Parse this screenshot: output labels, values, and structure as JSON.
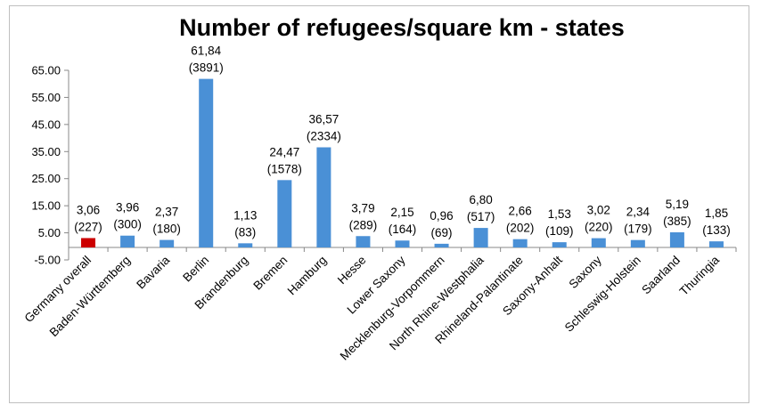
{
  "chart_data": {
    "type": "bar",
    "title": "Number of refugees/square km - states",
    "xlabel": "",
    "ylabel": "",
    "ylim": [
      -5,
      65
    ],
    "yticks": [
      "65.00",
      "55.00",
      "45.00",
      "35.00",
      "25.00",
      "15.00",
      "5.00",
      "-5.00"
    ],
    "ytick_values": [
      65,
      55,
      45,
      35,
      25,
      15,
      5,
      -5
    ],
    "grid": false,
    "categories": [
      "Germany overall",
      "Baden-Württemberg",
      "Bavaria",
      "Berlin",
      "Brandenburg",
      "Bremen",
      "Hamburg",
      "Hesse",
      "Lower Saxony",
      "Mecklenburg-Vorpommern",
      "North Rhine-Westphalia",
      "Rhineland-Palantinate",
      "Saxony-Anhalt",
      "Saxony",
      "Schleswig-Holstein",
      "Saarland",
      "Thuringia"
    ],
    "values": [
      3.06,
      3.96,
      2.37,
      61.84,
      1.13,
      24.47,
      36.57,
      3.79,
      2.15,
      0.96,
      6.8,
      2.66,
      1.53,
      3.02,
      2.34,
      5.19,
      1.85
    ],
    "value_labels": [
      "3,06",
      "3,96",
      "2,37",
      "61,84",
      "1,13",
      "24,47",
      "36,57",
      "3,79",
      "2,15",
      "0,96",
      "6,80",
      "2,66",
      "1,53",
      "3,02",
      "2,34",
      "5,19",
      "1,85"
    ],
    "count_labels": [
      "(227)",
      "(300)",
      "(180)",
      "(3891)",
      "(83)",
      "(1578)",
      "(2334)",
      "(289)",
      "(164)",
      "(69)",
      "(517)",
      "(202)",
      "(109)",
      "(220)",
      "(179)",
      "(385)",
      "(133)"
    ],
    "colors": [
      "#cc0000",
      "#4a90d6",
      "#4a90d6",
      "#4a90d6",
      "#4a90d6",
      "#4a90d6",
      "#4a90d6",
      "#4a90d6",
      "#4a90d6",
      "#4a90d6",
      "#4a90d6",
      "#4a90d6",
      "#4a90d6",
      "#4a90d6",
      "#4a90d6",
      "#4a90d6",
      "#4a90d6"
    ],
    "axis_color": "#888888"
  }
}
